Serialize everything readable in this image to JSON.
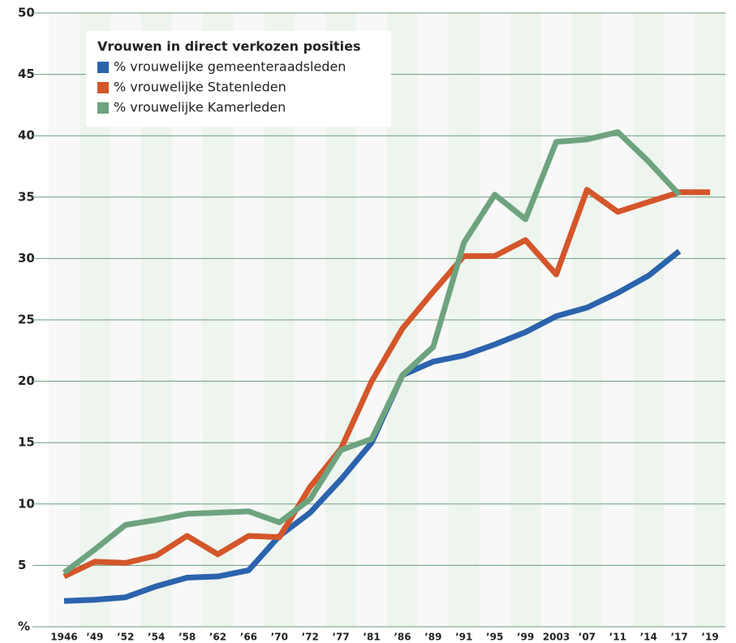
{
  "chart_data": {
    "type": "line",
    "legend_title": "Vrouwen in direct verkozen posities",
    "categories": [
      "1946",
      "’49",
      "’52",
      "’54",
      "’58",
      "’62",
      "’66",
      "’70",
      "’72",
      "’77",
      "’81",
      "’86",
      "’89",
      "’91",
      "’95",
      "’99",
      "2003",
      "’07",
      "’11",
      "’14",
      "’17",
      "’19"
    ],
    "series": [
      {
        "name": "% vrouwelijke gemeenteraadsleden",
        "color": "#2b63ad",
        "values": [
          2.1,
          2.2,
          2.4,
          3.3,
          4.0,
          4.1,
          4.6,
          7.4,
          9.3,
          12.0,
          15.0,
          20.5,
          21.6,
          22.1,
          23.0,
          24.0,
          25.3,
          26.0,
          27.2,
          28.6,
          30.6,
          null
        ]
      },
      {
        "name": "% vrouwelijke Statenleden",
        "color": "#d4562a",
        "values": [
          4.1,
          5.3,
          5.2,
          5.8,
          7.4,
          5.9,
          7.4,
          7.3,
          11.4,
          14.5,
          20.0,
          24.3,
          27.3,
          30.2,
          30.2,
          31.5,
          28.7,
          35.6,
          33.8,
          34.6,
          35.4,
          35.4
        ]
      },
      {
        "name": "% vrouwelijke Kamerleden",
        "color": "#6ea37f",
        "values": [
          4.4,
          6.3,
          8.3,
          8.7,
          9.2,
          9.3,
          9.4,
          8.5,
          10.4,
          14.4,
          15.3,
          20.5,
          22.8,
          31.3,
          35.2,
          33.2,
          39.5,
          39.7,
          40.3,
          37.9,
          35.2,
          null
        ]
      }
    ],
    "ylim": [
      0,
      50
    ],
    "yticks": [
      {
        "value": 0,
        "label": "%"
      },
      5,
      10,
      15,
      20,
      25,
      30,
      35,
      40,
      45,
      50
    ],
    "grid": true
  }
}
